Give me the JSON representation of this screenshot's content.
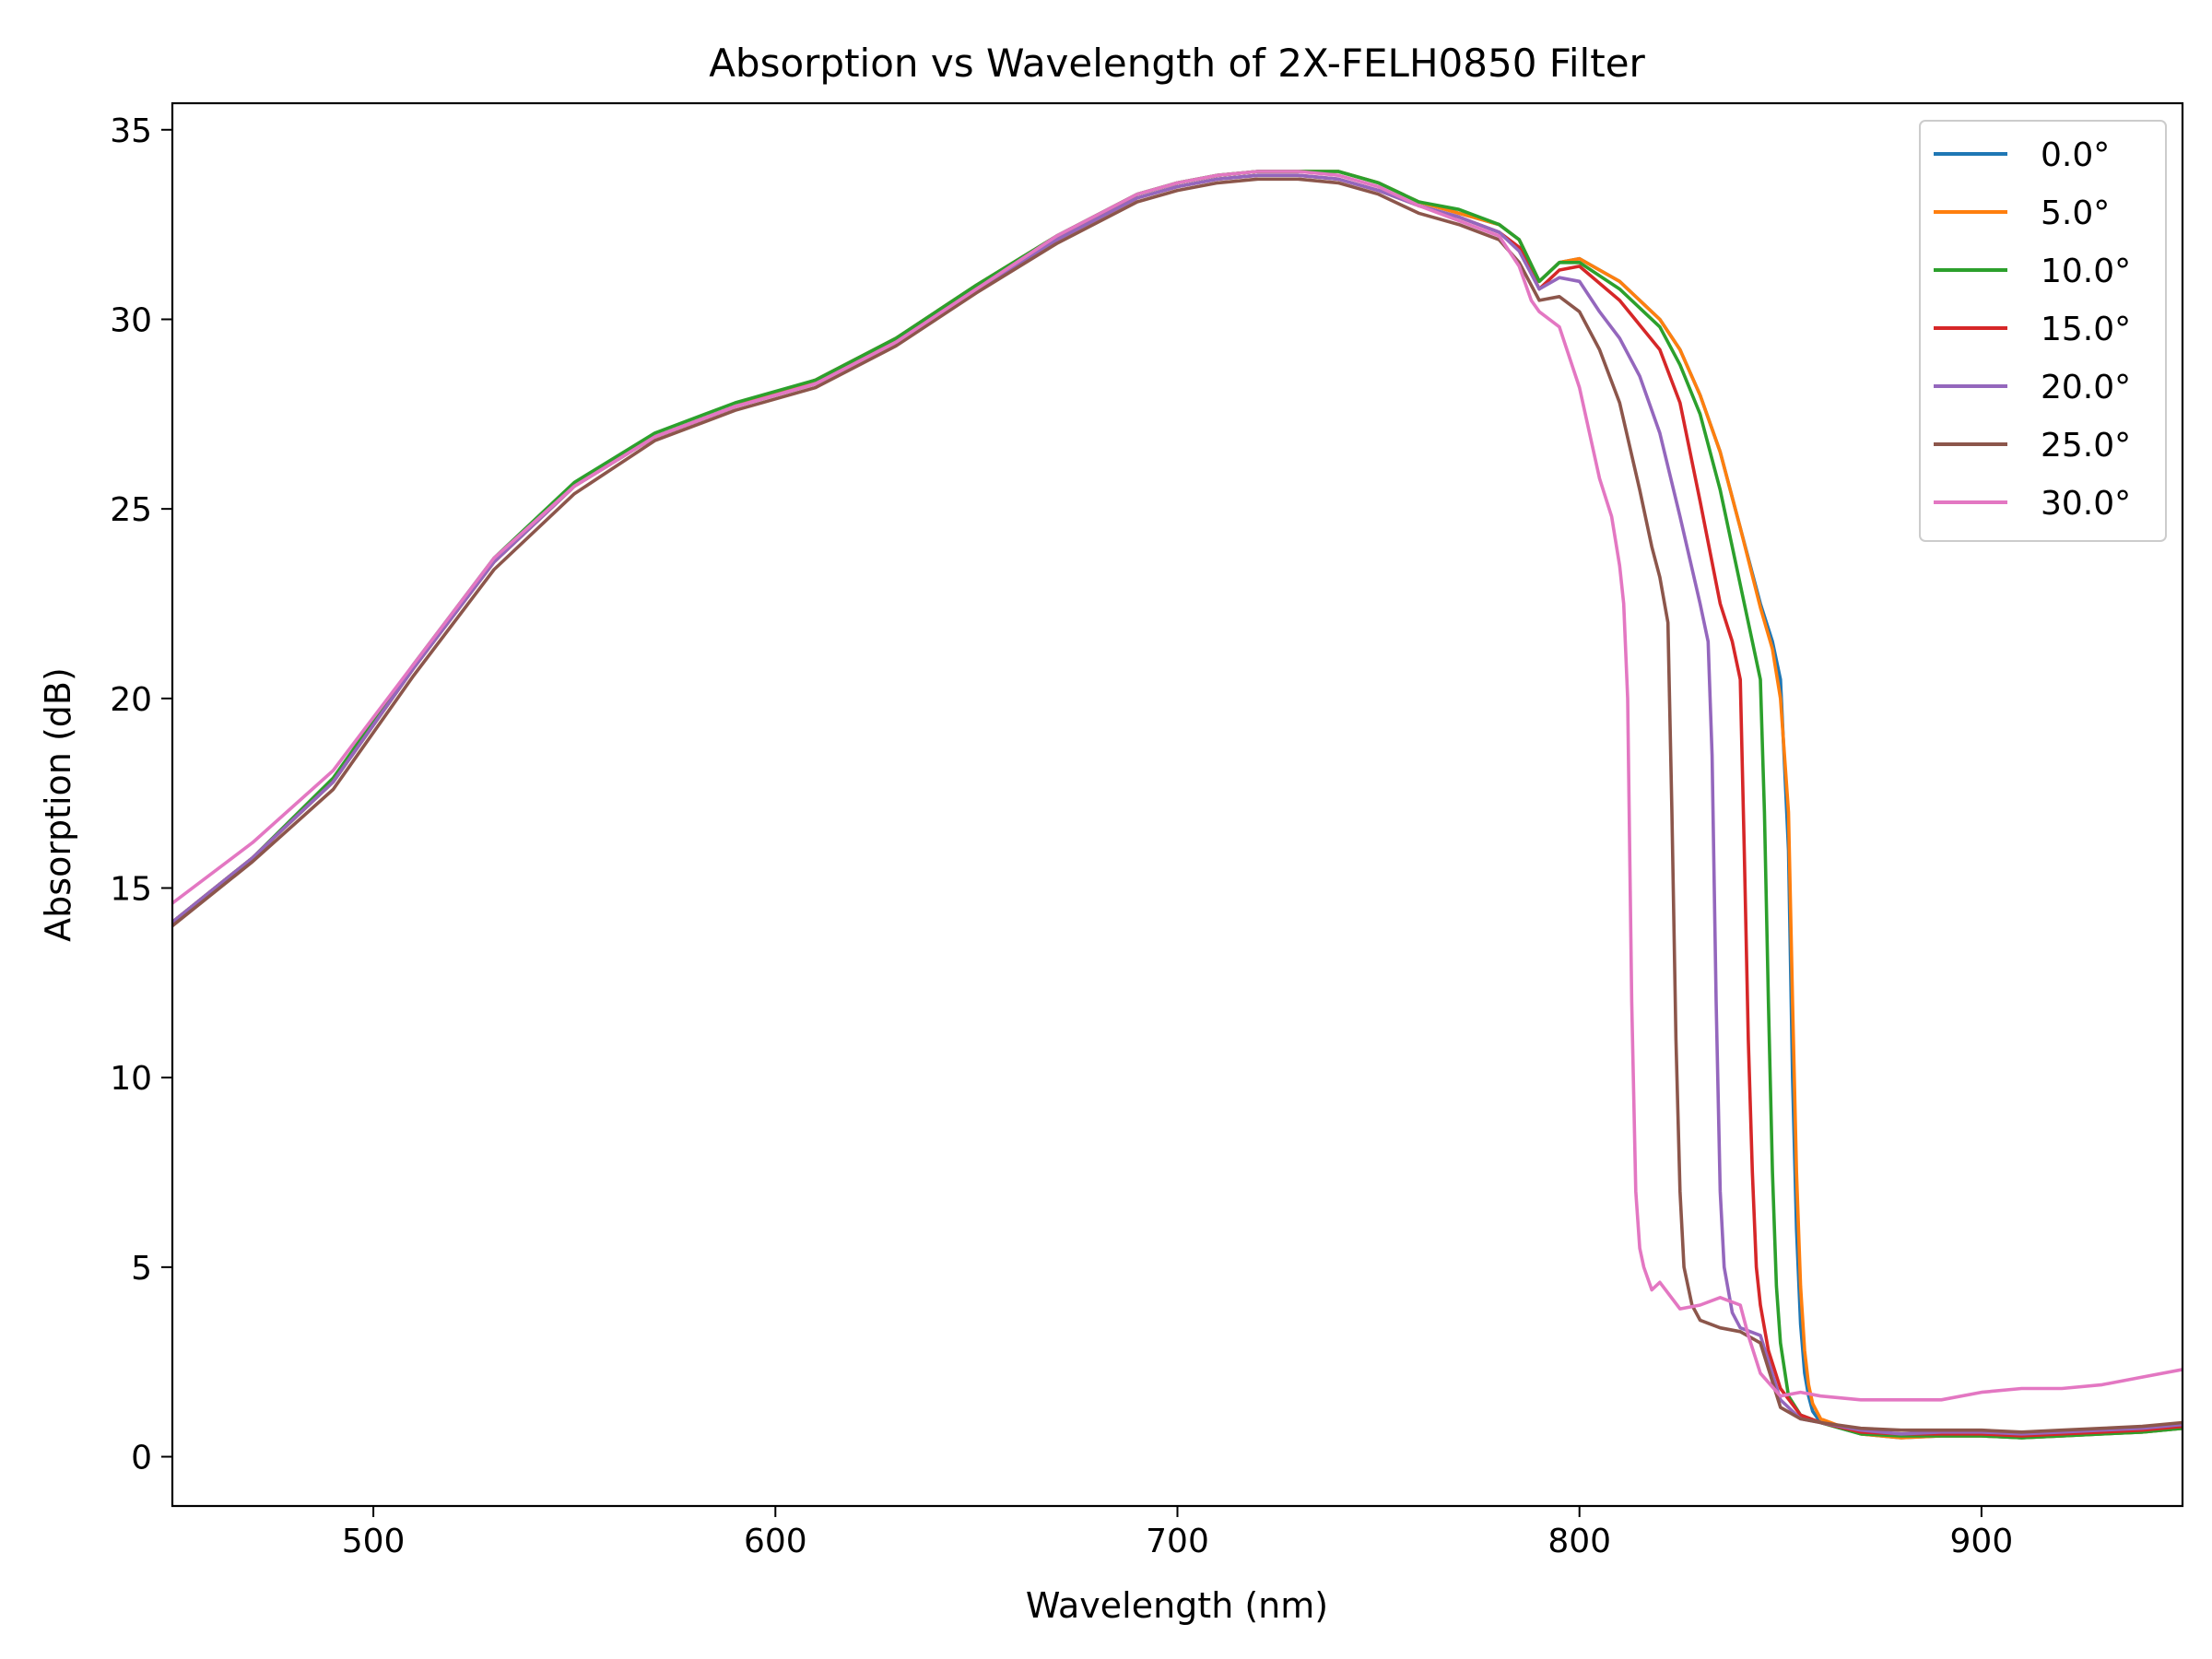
{
  "chart_data": {
    "type": "line",
    "title": "Absorption vs Wavelength of 2X-FELH0850 Filter",
    "xlabel": "Wavelength (nm)",
    "ylabel": "Absorption (dB)",
    "xlim": [
      450,
      950
    ],
    "ylim": [
      -1.3,
      35.7
    ],
    "xticks": [
      500,
      600,
      700,
      800,
      900
    ],
    "yticks": [
      0,
      5,
      10,
      15,
      20,
      25,
      30,
      35
    ],
    "grid": false,
    "legend_position": "top-right",
    "series": [
      {
        "name": "0.0°",
        "color": "#1f77b4",
        "x": [
          450,
          470,
          490,
          510,
          530,
          550,
          570,
          590,
          610,
          630,
          650,
          670,
          690,
          700,
          710,
          720,
          730,
          740,
          750,
          760,
          770,
          780,
          785,
          790,
          795,
          800,
          810,
          820,
          825,
          830,
          835,
          840,
          845,
          848,
          850,
          852,
          853,
          854,
          855,
          856,
          857,
          858,
          860,
          870,
          880,
          890,
          900,
          910,
          920,
          930,
          940,
          950
        ],
        "y": [
          14.1,
          15.8,
          17.8,
          20.8,
          23.6,
          25.6,
          26.9,
          27.7,
          28.4,
          29.5,
          30.9,
          32.2,
          33.3,
          33.6,
          33.8,
          33.9,
          33.9,
          33.9,
          33.6,
          33.1,
          32.8,
          32.5,
          32.1,
          31.0,
          31.5,
          31.6,
          31.0,
          30.0,
          29.2,
          28.0,
          26.5,
          24.5,
          22.5,
          21.5,
          20.5,
          16.0,
          10.0,
          6.0,
          3.5,
          2.2,
          1.6,
          1.2,
          0.9,
          0.6,
          0.5,
          0.55,
          0.55,
          0.5,
          0.55,
          0.6,
          0.65,
          0.75
        ]
      },
      {
        "name": "5.0°",
        "color": "#ff7f0e",
        "x": [
          450,
          470,
          490,
          510,
          530,
          550,
          570,
          590,
          610,
          630,
          650,
          670,
          690,
          700,
          710,
          720,
          730,
          740,
          750,
          760,
          770,
          780,
          785,
          790,
          795,
          800,
          810,
          820,
          825,
          830,
          835,
          840,
          845,
          848,
          850,
          852,
          853,
          854,
          855,
          856,
          857,
          858,
          860,
          870,
          880,
          890,
          900,
          910,
          920,
          930,
          940,
          950
        ],
        "y": [
          14.1,
          15.8,
          17.8,
          20.8,
          23.6,
          25.6,
          26.9,
          27.7,
          28.4,
          29.5,
          30.9,
          32.2,
          33.3,
          33.6,
          33.8,
          33.9,
          33.9,
          33.9,
          33.6,
          33.1,
          32.8,
          32.5,
          32.1,
          31.0,
          31.5,
          31.6,
          31.0,
          30.0,
          29.2,
          28.0,
          26.5,
          24.5,
          22.4,
          21.3,
          20.0,
          17.0,
          12.0,
          7.5,
          4.5,
          2.8,
          1.9,
          1.4,
          1.0,
          0.6,
          0.5,
          0.55,
          0.55,
          0.5,
          0.55,
          0.6,
          0.65,
          0.75
        ]
      },
      {
        "name": "10.0°",
        "color": "#2ca02c",
        "x": [
          450,
          470,
          490,
          510,
          530,
          550,
          570,
          590,
          610,
          630,
          650,
          670,
          690,
          700,
          710,
          720,
          730,
          740,
          750,
          760,
          770,
          780,
          785,
          790,
          795,
          800,
          810,
          820,
          825,
          830,
          835,
          840,
          843,
          845,
          846,
          847,
          848,
          849,
          850,
          852,
          855,
          860,
          870,
          880,
          890,
          900,
          910,
          920,
          930,
          940,
          950
        ],
        "y": [
          14.1,
          15.8,
          17.9,
          20.9,
          23.7,
          25.7,
          27.0,
          27.8,
          28.4,
          29.5,
          30.9,
          32.2,
          33.3,
          33.6,
          33.8,
          33.9,
          33.9,
          33.9,
          33.6,
          33.1,
          32.9,
          32.5,
          32.1,
          31.0,
          31.5,
          31.5,
          30.8,
          29.8,
          28.8,
          27.5,
          25.5,
          23.0,
          21.5,
          20.5,
          17.0,
          12.0,
          7.5,
          4.5,
          3.0,
          1.6,
          1.1,
          0.9,
          0.6,
          0.55,
          0.55,
          0.55,
          0.5,
          0.55,
          0.6,
          0.65,
          0.75
        ]
      },
      {
        "name": "15.0°",
        "color": "#d62728",
        "x": [
          450,
          470,
          490,
          510,
          530,
          550,
          570,
          590,
          610,
          630,
          650,
          670,
          690,
          700,
          710,
          720,
          730,
          740,
          750,
          760,
          770,
          780,
          785,
          790,
          795,
          800,
          810,
          820,
          825,
          830,
          835,
          838,
          840,
          841,
          842,
          843,
          844,
          845,
          847,
          850,
          855,
          860,
          870,
          880,
          890,
          900,
          910,
          920,
          930,
          940,
          950
        ],
        "y": [
          14.1,
          15.8,
          17.8,
          20.8,
          23.6,
          25.6,
          26.9,
          27.7,
          28.3,
          29.4,
          30.8,
          32.1,
          33.2,
          33.5,
          33.7,
          33.8,
          33.8,
          33.7,
          33.4,
          33.0,
          32.7,
          32.3,
          31.9,
          30.8,
          31.3,
          31.4,
          30.5,
          29.2,
          27.8,
          25.2,
          22.5,
          21.5,
          20.5,
          16.0,
          11.0,
          7.5,
          5.0,
          4.0,
          2.8,
          1.8,
          1.1,
          0.9,
          0.65,
          0.6,
          0.6,
          0.6,
          0.55,
          0.6,
          0.65,
          0.7,
          0.8
        ]
      },
      {
        "name": "20.0°",
        "color": "#9467bd",
        "x": [
          450,
          470,
          490,
          510,
          530,
          550,
          570,
          590,
          610,
          630,
          650,
          670,
          690,
          700,
          710,
          720,
          730,
          740,
          750,
          760,
          770,
          780,
          785,
          790,
          795,
          800,
          805,
          810,
          815,
          820,
          825,
          830,
          832,
          833,
          834,
          835,
          836,
          838,
          840,
          845,
          850,
          855,
          860,
          870,
          880,
          890,
          900,
          910,
          920,
          930,
          940,
          950
        ],
        "y": [
          14.1,
          15.8,
          17.8,
          20.8,
          23.6,
          25.6,
          26.9,
          27.7,
          28.3,
          29.4,
          30.8,
          32.1,
          33.2,
          33.5,
          33.7,
          33.8,
          33.8,
          33.7,
          33.4,
          33.0,
          32.7,
          32.3,
          31.8,
          30.8,
          31.1,
          31.0,
          30.2,
          29.5,
          28.5,
          27.0,
          24.8,
          22.5,
          21.5,
          18.5,
          12.0,
          7.0,
          5.0,
          3.8,
          3.4,
          3.2,
          1.5,
          1.0,
          0.9,
          0.7,
          0.6,
          0.65,
          0.65,
          0.6,
          0.65,
          0.7,
          0.75,
          0.85
        ]
      },
      {
        "name": "25.0°",
        "color": "#8c564b",
        "x": [
          450,
          470,
          490,
          510,
          530,
          550,
          570,
          590,
          610,
          630,
          650,
          670,
          690,
          700,
          710,
          720,
          730,
          740,
          750,
          760,
          770,
          780,
          785,
          790,
          795,
          800,
          805,
          810,
          815,
          818,
          820,
          822,
          823,
          824,
          825,
          826,
          828,
          830,
          835,
          840,
          845,
          850,
          855,
          860,
          870,
          880,
          890,
          900,
          910,
          920,
          930,
          940,
          950
        ],
        "y": [
          14.0,
          15.7,
          17.6,
          20.6,
          23.4,
          25.4,
          26.8,
          27.6,
          28.2,
          29.3,
          30.7,
          32.0,
          33.1,
          33.4,
          33.6,
          33.7,
          33.7,
          33.6,
          33.3,
          32.8,
          32.5,
          32.1,
          31.5,
          30.5,
          30.6,
          30.2,
          29.2,
          27.8,
          25.5,
          24.0,
          23.2,
          22.0,
          17.0,
          11.0,
          7.0,
          5.0,
          4.0,
          3.6,
          3.4,
          3.3,
          3.0,
          1.3,
          1.0,
          0.9,
          0.75,
          0.7,
          0.7,
          0.7,
          0.65,
          0.7,
          0.75,
          0.8,
          0.9
        ]
      },
      {
        "name": "30.0°",
        "color": "#e377c2",
        "x": [
          450,
          470,
          490,
          510,
          530,
          550,
          570,
          590,
          610,
          630,
          650,
          670,
          690,
          700,
          710,
          720,
          730,
          740,
          750,
          760,
          770,
          780,
          785,
          788,
          790,
          795,
          800,
          805,
          808,
          810,
          811,
          812,
          813,
          814,
          815,
          816,
          818,
          820,
          825,
          830,
          835,
          840,
          842,
          845,
          850,
          855,
          860,
          870,
          880,
          890,
          900,
          910,
          920,
          930,
          940,
          950
        ],
        "y": [
          14.6,
          16.2,
          18.1,
          20.9,
          23.7,
          25.6,
          26.9,
          27.7,
          28.3,
          29.4,
          30.8,
          32.2,
          33.3,
          33.6,
          33.8,
          33.9,
          33.9,
          33.8,
          33.5,
          33.0,
          32.6,
          32.2,
          31.4,
          30.5,
          30.2,
          29.8,
          28.2,
          25.8,
          24.8,
          23.5,
          22.5,
          20.0,
          12.0,
          7.0,
          5.5,
          5.0,
          4.4,
          4.6,
          3.9,
          4.0,
          4.2,
          4.0,
          3.2,
          2.2,
          1.6,
          1.7,
          1.6,
          1.5,
          1.5,
          1.5,
          1.7,
          1.8,
          1.8,
          1.9,
          2.1,
          2.3
        ]
      }
    ]
  }
}
